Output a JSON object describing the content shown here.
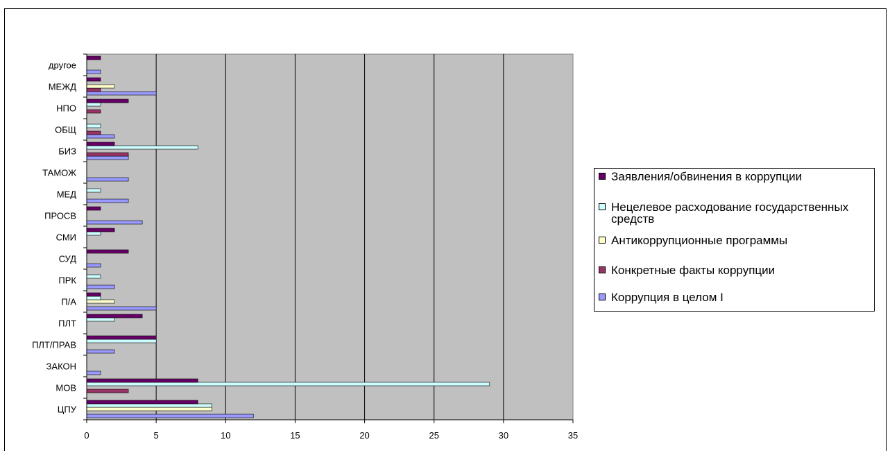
{
  "chart_data": {
    "type": "bar",
    "orientation": "horizontal",
    "title": "",
    "xlabel": "",
    "ylabel": "",
    "xlim": [
      0,
      35
    ],
    "x_ticks": [
      0,
      5,
      10,
      15,
      20,
      25,
      30,
      35
    ],
    "grid": "vertical",
    "legend_position": "right",
    "plot_background": "#c0c0c0",
    "categories": [
      "ЦПУ",
      "МОВ",
      "ЗАКОН",
      "ПЛТ/ПРАВ",
      "ПЛТ",
      "П/А",
      "ПРК",
      "СУД",
      "СМИ",
      "ПРОСВ",
      "МЕД",
      "ТАМОЖ",
      "БИЗ",
      "ОБЩ",
      "НПО",
      "МЕЖД",
      "другое"
    ],
    "series": [
      {
        "name": "Коррупция в целом I",
        "color": "#9999ff",
        "values": [
          12,
          0,
          1,
          2,
          0,
          5,
          2,
          1,
          0,
          4,
          3,
          3,
          3,
          2,
          0,
          5,
          1
        ]
      },
      {
        "name": "Конкретные факты коррупции",
        "color": "#993366",
        "values": [
          0,
          3,
          0,
          0,
          0,
          0,
          0,
          0,
          0,
          0,
          0,
          0,
          3,
          1,
          1,
          1,
          0
        ]
      },
      {
        "name": "Антикоррупционные программы",
        "color": "#ffffcc",
        "values": [
          9,
          0,
          0,
          0,
          0,
          2,
          0,
          0,
          0,
          0,
          0,
          0,
          0,
          0,
          0,
          2,
          0
        ]
      },
      {
        "name": "Нецелевое расходование государственных средств",
        "color": "#ccffff",
        "values": [
          9,
          29,
          0,
          5,
          2,
          1,
          1,
          0,
          1,
          0,
          1,
          0,
          8,
          1,
          1,
          0,
          0
        ]
      },
      {
        "name": "Заявления/обвинения в коррупции",
        "color": "#660066",
        "values": [
          8,
          8,
          0,
          5,
          4,
          1,
          0,
          3,
          2,
          1,
          0,
          0,
          2,
          0,
          3,
          1,
          1
        ]
      }
    ]
  }
}
